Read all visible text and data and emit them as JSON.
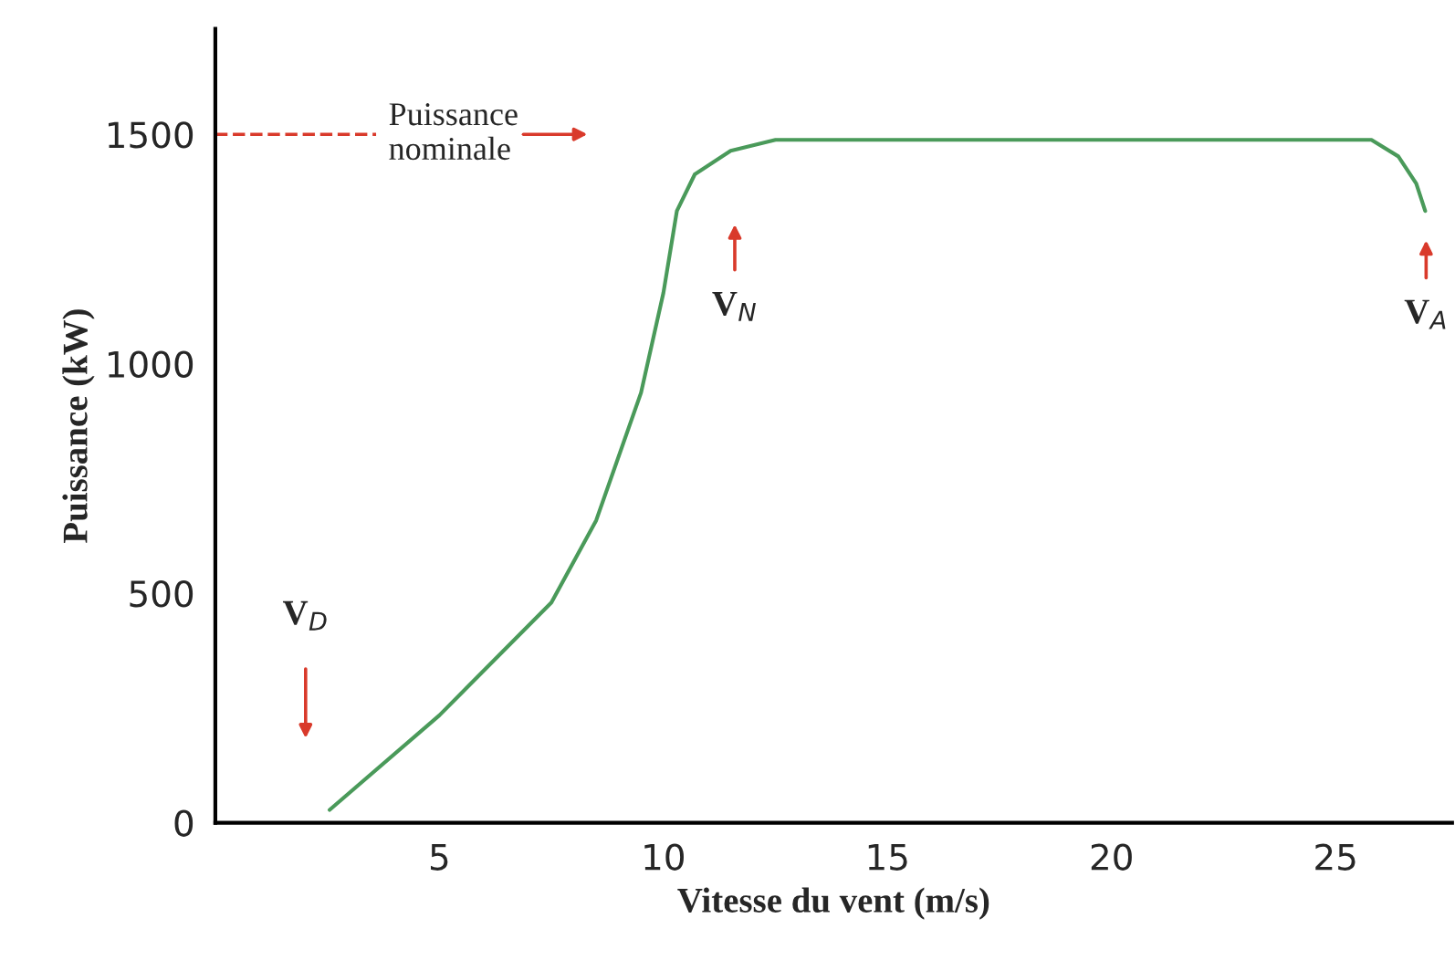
{
  "chart_data": {
    "type": "line",
    "xlabel": "Vitesse du vent (m/s)",
    "ylabel": "Puissance (kW)",
    "x": [
      2.55,
      5,
      7.5,
      8.5,
      9.5,
      10,
      10.3,
      10.7,
      11.5,
      12.5,
      25,
      25.8,
      26.4,
      26.8,
      27
    ],
    "series": [
      {
        "color": "#4a9a5a",
        "values": [
          28,
          234,
          480,
          659,
          937,
          1155,
          1333,
          1413,
          1464,
          1488,
          1488,
          1488,
          1452,
          1393,
          1333
        ]
      }
    ],
    "xlim": [
      0,
      27.6
    ],
    "ylim": [
      0,
      1730
    ],
    "xticks": [
      5,
      10,
      15,
      20,
      25
    ],
    "yticks": [
      0,
      500,
      1000,
      1500
    ],
    "grid": false,
    "legend": false,
    "line_style": "solid",
    "marker": "none",
    "ref_lines": [
      {
        "axis": "y",
        "value": 1500,
        "label": "Puissance\nnominale",
        "color": "#d93a2b",
        "line_style": "dashed"
      }
    ],
    "annotations": [
      "V$_{D}$",
      "V$_{N}$",
      "V$_{A}$"
    ]
  }
}
